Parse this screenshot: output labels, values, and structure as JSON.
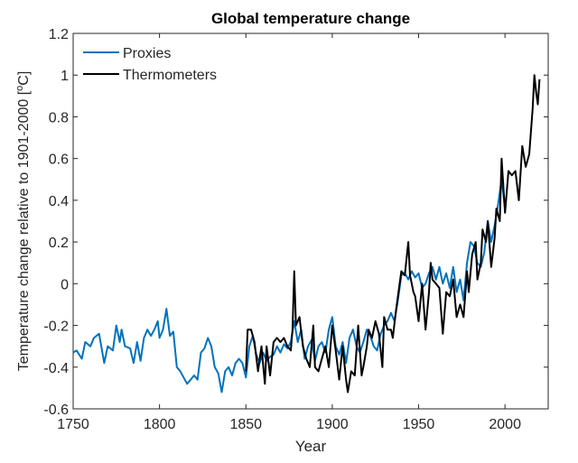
{
  "chart_data": {
    "type": "line",
    "title": "Global temperature change",
    "xlabel": "Year",
    "ylabel": "Temperature change relative to 1901-2000 [",
    "ylabel_sup": "o",
    "ylabel_unit": "C]",
    "xlim": [
      1750,
      2025
    ],
    "ylim": [
      -0.6,
      1.2
    ],
    "xticks": [
      1750,
      1800,
      1850,
      1900,
      1950,
      2000
    ],
    "yticks": [
      -0.6,
      -0.4,
      -0.2,
      0,
      0.2,
      0.4,
      0.6,
      0.8,
      1,
      1.2
    ],
    "ytick_labels": [
      "-0.6",
      "-0.4",
      "-0.2",
      "0",
      "0.2",
      "0.4",
      "0.6",
      "0.8",
      "1",
      "1.2"
    ],
    "grid": false,
    "legend_position": "top-left",
    "series": [
      {
        "name": "Proxies",
        "color": "#0072BD",
        "x": [
          1750,
          1752,
          1755,
          1757,
          1760,
          1762,
          1765,
          1768,
          1770,
          1773,
          1775,
          1777,
          1778,
          1780,
          1783,
          1785,
          1787,
          1789,
          1791,
          1793,
          1795,
          1797,
          1799,
          1800,
          1802,
          1804,
          1806,
          1808,
          1810,
          1812,
          1814,
          1816,
          1818,
          1820,
          1822,
          1824,
          1826,
          1828,
          1830,
          1832,
          1834,
          1836,
          1838,
          1840,
          1842,
          1844,
          1846,
          1848,
          1850,
          1852,
          1854,
          1856,
          1858,
          1860,
          1862,
          1864,
          1866,
          1868,
          1870,
          1872,
          1874,
          1876,
          1878,
          1880,
          1882,
          1884,
          1886,
          1888,
          1890,
          1892,
          1894,
          1896,
          1898,
          1900,
          1902,
          1904,
          1906,
          1908,
          1910,
          1912,
          1914,
          1916,
          1918,
          1920,
          1922,
          1924,
          1926,
          1928,
          1930,
          1932,
          1934,
          1936,
          1938,
          1940,
          1942,
          1944,
          1946,
          1948,
          1950,
          1952,
          1954,
          1956,
          1958,
          1960,
          1962,
          1964,
          1966,
          1968,
          1970,
          1972,
          1974,
          1976,
          1978,
          1980,
          1982,
          1984,
          1986,
          1988,
          1990,
          1992,
          1994,
          1996,
          1998,
          2000
        ],
        "y": [
          -0.33,
          -0.32,
          -0.36,
          -0.28,
          -0.3,
          -0.26,
          -0.24,
          -0.38,
          -0.3,
          -0.32,
          -0.2,
          -0.28,
          -0.22,
          -0.3,
          -0.31,
          -0.38,
          -0.28,
          -0.37,
          -0.26,
          -0.22,
          -0.25,
          -0.22,
          -0.18,
          -0.26,
          -0.22,
          -0.12,
          -0.25,
          -0.23,
          -0.4,
          -0.42,
          -0.45,
          -0.48,
          -0.46,
          -0.44,
          -0.46,
          -0.33,
          -0.31,
          -0.26,
          -0.3,
          -0.4,
          -0.43,
          -0.52,
          -0.42,
          -0.4,
          -0.44,
          -0.38,
          -0.36,
          -0.38,
          -0.45,
          -0.3,
          -0.25,
          -0.34,
          -0.38,
          -0.33,
          -0.37,
          -0.35,
          -0.34,
          -0.3,
          -0.33,
          -0.29,
          -0.31,
          -0.28,
          -0.18,
          -0.28,
          -0.22,
          -0.36,
          -0.3,
          -0.27,
          -0.37,
          -0.3,
          -0.28,
          -0.33,
          -0.22,
          -0.16,
          -0.3,
          -0.34,
          -0.28,
          -0.38,
          -0.26,
          -0.22,
          -0.3,
          -0.33,
          -0.28,
          -0.22,
          -0.25,
          -0.3,
          -0.32,
          -0.24,
          -0.2,
          -0.18,
          -0.14,
          -0.18,
          -0.08,
          0.04,
          0.05,
          0.02,
          0.06,
          0.03,
          0.05,
          -0.02,
          0.0,
          0.05,
          0.08,
          0.02,
          0.08,
          0.0,
          0.05,
          -0.02,
          0.08,
          -0.04,
          0.02,
          -0.08,
          0.1,
          0.2,
          0.18,
          0.1,
          0.08,
          0.15,
          0.3,
          0.2,
          0.28,
          0.38,
          0.5,
          0.36
        ]
      },
      {
        "name": "Thermometers",
        "color": "#000000",
        "x": [
          1850,
          1851,
          1853,
          1855,
          1857,
          1859,
          1861,
          1862,
          1864,
          1866,
          1868,
          1870,
          1872,
          1874,
          1876,
          1877,
          1878,
          1879,
          1881,
          1883,
          1885,
          1887,
          1889,
          1890,
          1892,
          1894,
          1896,
          1898,
          1900,
          1902,
          1904,
          1906,
          1908,
          1909,
          1911,
          1913,
          1915,
          1917,
          1918,
          1920,
          1921,
          1923,
          1925,
          1927,
          1929,
          1930,
          1932,
          1934,
          1935,
          1937,
          1938,
          1940,
          1942,
          1944,
          1945,
          1947,
          1948,
          1950,
          1952,
          1954,
          1956,
          1957,
          1958,
          1960,
          1962,
          1964,
          1966,
          1968,
          1970,
          1972,
          1974,
          1976,
          1978,
          1979,
          1981,
          1983,
          1984,
          1986,
          1987,
          1989,
          1990,
          1992,
          1994,
          1995,
          1997,
          1998,
          2000,
          2002,
          2004,
          2006,
          2008,
          2010,
          2012,
          2014,
          2016,
          2017,
          2018,
          2019,
          2020
        ],
        "y": [
          -0.42,
          -0.22,
          -0.22,
          -0.28,
          -0.42,
          -0.3,
          -0.48,
          -0.3,
          -0.44,
          -0.28,
          -0.26,
          -0.28,
          -0.26,
          -0.3,
          -0.32,
          -0.22,
          0.06,
          -0.2,
          -0.16,
          -0.3,
          -0.36,
          -0.4,
          -0.2,
          -0.4,
          -0.42,
          -0.36,
          -0.3,
          -0.4,
          -0.2,
          -0.32,
          -0.46,
          -0.3,
          -0.46,
          -0.52,
          -0.42,
          -0.44,
          -0.2,
          -0.44,
          -0.4,
          -0.3,
          -0.22,
          -0.26,
          -0.18,
          -0.24,
          -0.4,
          -0.16,
          -0.22,
          -0.22,
          -0.26,
          -0.12,
          -0.06,
          0.06,
          0.04,
          0.2,
          0.04,
          -0.04,
          -0.06,
          -0.18,
          0.0,
          -0.22,
          -0.04,
          0.1,
          0.02,
          0.0,
          -0.02,
          -0.24,
          -0.04,
          -0.06,
          0.02,
          -0.16,
          -0.1,
          -0.16,
          0.06,
          -0.04,
          0.14,
          0.2,
          0.02,
          0.1,
          0.26,
          0.2,
          0.3,
          0.08,
          0.22,
          0.36,
          0.3,
          0.6,
          0.34,
          0.54,
          0.52,
          0.54,
          0.4,
          0.66,
          0.56,
          0.62,
          0.84,
          1.0,
          0.92,
          0.86,
          0.98
        ]
      }
    ]
  }
}
